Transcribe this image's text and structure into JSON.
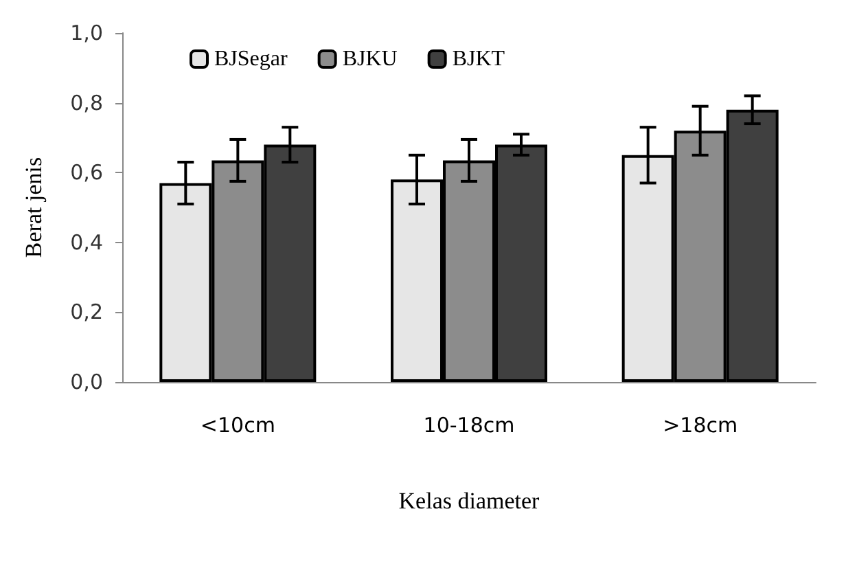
{
  "chart_data": {
    "type": "bar",
    "xlabel": "Kelas diameter",
    "ylabel": "Berat jenis",
    "categories": [
      "<10cm",
      "10-18cm",
      ">18cm"
    ],
    "series": [
      {
        "name": "BJSegar",
        "color": "#e6e6e6",
        "values": [
          0.57,
          0.58,
          0.65
        ],
        "errors": [
          0.06,
          0.07,
          0.08
        ]
      },
      {
        "name": "BJKU",
        "color": "#8c8c8c",
        "values": [
          0.635,
          0.635,
          0.72
        ],
        "errors": [
          0.06,
          0.06,
          0.07
        ]
      },
      {
        "name": "BJKT",
        "color": "#404040",
        "values": [
          0.68,
          0.68,
          0.78
        ],
        "errors": [
          0.05,
          0.03,
          0.04
        ]
      }
    ],
    "ylim": [
      0,
      1
    ],
    "yticks": [
      {
        "value": 0,
        "label": "0,0"
      },
      {
        "value": 0.2,
        "label": "0,2"
      },
      {
        "value": 0.4,
        "label": "0,4"
      },
      {
        "value": 0.6,
        "label": "0,6"
      },
      {
        "value": 0.8,
        "label": "0,8"
      },
      {
        "value": 1,
        "label": "1,0"
      }
    ],
    "grid": false,
    "legend": "top"
  }
}
